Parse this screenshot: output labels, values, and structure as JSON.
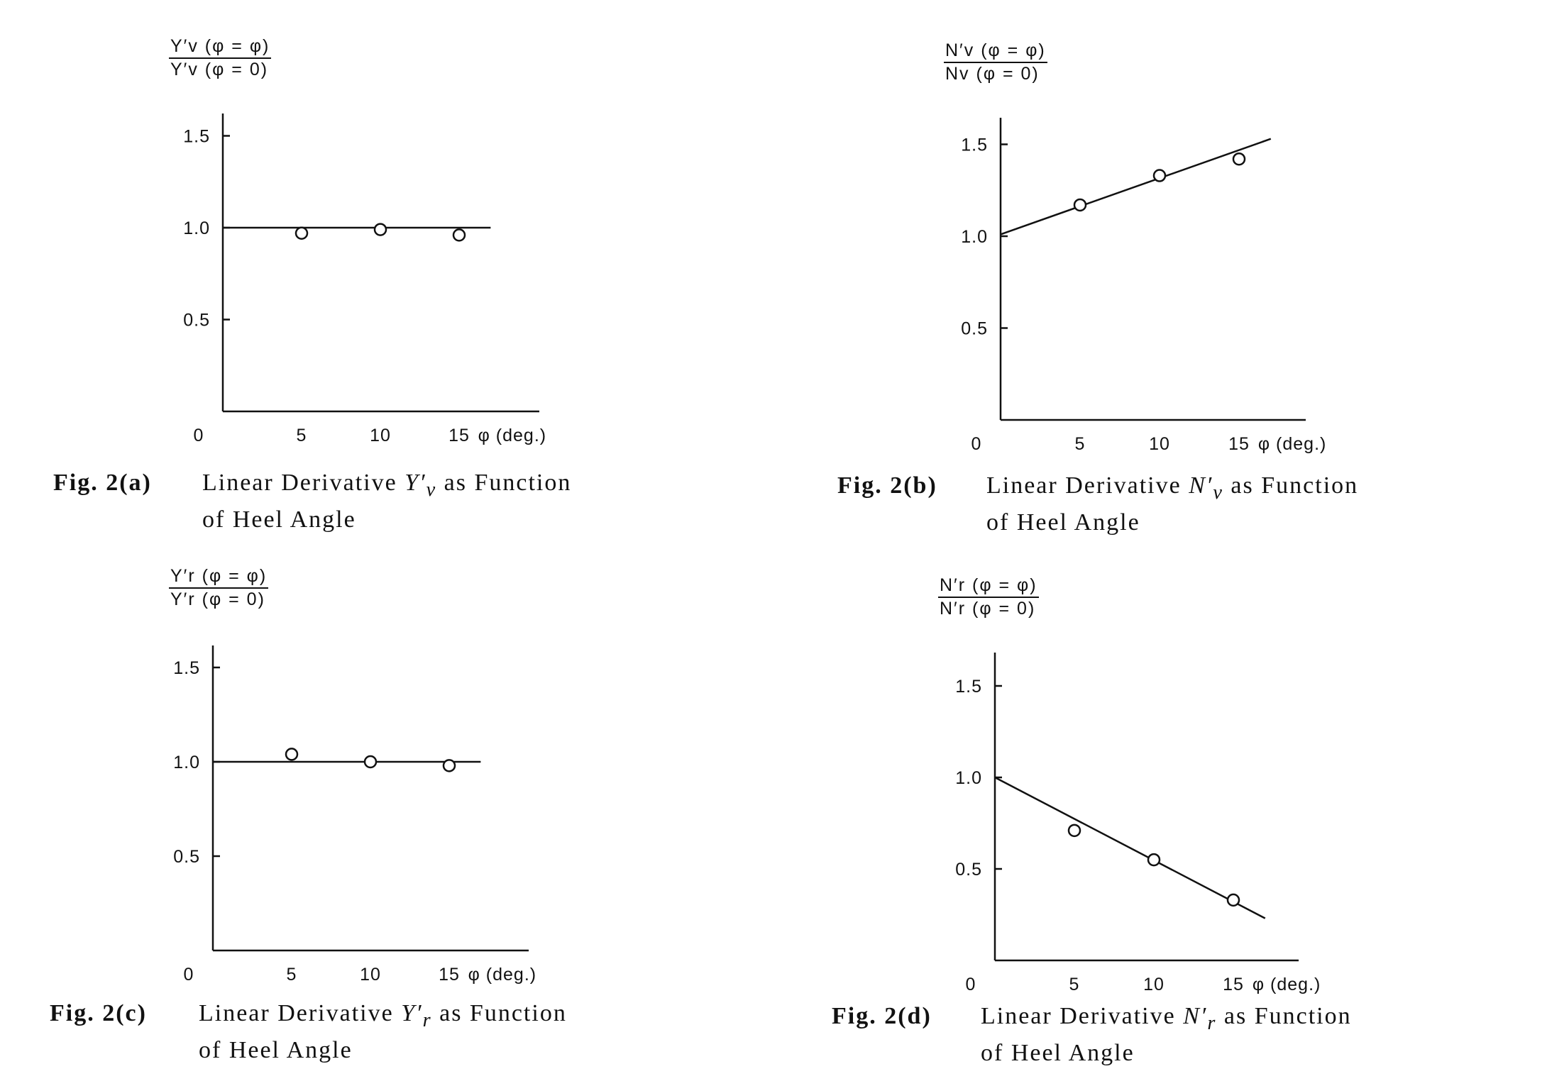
{
  "chart_data": [
    {
      "id": "a",
      "type": "scatter",
      "ylabel_num": "Y′v (φ = φ)",
      "ylabel_den": "Y′v (φ = 0)",
      "xlabel": "φ (deg.)",
      "x_ticks": [
        "0",
        "5",
        "10",
        "15"
      ],
      "y_ticks": [
        "0.5",
        "1.0",
        "1.5"
      ],
      "xlim": [
        0,
        20
      ],
      "ylim": [
        0,
        1.65
      ],
      "x": [
        5,
        10,
        15
      ],
      "y": [
        0.97,
        0.99,
        0.96
      ],
      "fit_line": {
        "x": [
          0,
          17
        ],
        "y": [
          1.0,
          1.0
        ]
      },
      "caption_fig": "Fig. 2(a)",
      "caption_text": "Linear Derivative ",
      "caption_sym": "Y′",
      "caption_sub": "v",
      "caption_tail": " as Function",
      "caption_line2": "of Heel Angle"
    },
    {
      "id": "b",
      "type": "scatter",
      "ylabel_num": "N′v (φ = φ)",
      "ylabel_den": "Nv (φ = 0)",
      "xlabel": "φ (deg.)",
      "x_ticks": [
        "0",
        "5",
        "10",
        "15"
      ],
      "y_ticks": [
        "0.5",
        "1.0",
        "1.5"
      ],
      "xlim": [
        0,
        20
      ],
      "ylim": [
        0,
        1.65
      ],
      "x": [
        5,
        10,
        15
      ],
      "y": [
        1.17,
        1.33,
        1.42
      ],
      "fit_line": {
        "x": [
          0,
          17
        ],
        "y": [
          1.01,
          1.53
        ]
      },
      "caption_fig": "Fig. 2(b)",
      "caption_text": "Linear Derivative ",
      "caption_sym": "N′",
      "caption_sub": "v",
      "caption_tail": " as Function",
      "caption_line2": "of Heel Angle"
    },
    {
      "id": "c",
      "type": "scatter",
      "ylabel_num": "Y′r (φ = φ)",
      "ylabel_den": "Y′r (φ = 0)",
      "xlabel": "φ (deg.)",
      "x_ticks": [
        "0",
        "5",
        "10",
        "15"
      ],
      "y_ticks": [
        "0.5",
        "1.0",
        "1.5"
      ],
      "xlim": [
        0,
        20
      ],
      "ylim": [
        0,
        1.65
      ],
      "x": [
        5,
        10,
        15
      ],
      "y": [
        1.04,
        1.0,
        0.98
      ],
      "fit_line": {
        "x": [
          0,
          17
        ],
        "y": [
          1.0,
          1.0
        ]
      },
      "caption_fig": "Fig. 2(c)",
      "caption_text": "Linear Derivative ",
      "caption_sym": "Y′",
      "caption_sub": "r",
      "caption_tail": " as Function",
      "caption_line2": "of Heel Angle"
    },
    {
      "id": "d",
      "type": "scatter",
      "ylabel_num": "N′r (φ = φ)",
      "ylabel_den": "N′r (φ = 0)",
      "xlabel": "φ (deg.)",
      "x_ticks": [
        "0",
        "5",
        "10",
        "15"
      ],
      "y_ticks": [
        "0.5",
        "1.0",
        "1.5"
      ],
      "xlim": [
        0,
        20
      ],
      "ylim": [
        0,
        1.65
      ],
      "x": [
        5,
        10,
        15
      ],
      "y": [
        0.71,
        0.55,
        0.33
      ],
      "fit_line": {
        "x": [
          0,
          17
        ],
        "y": [
          1.0,
          0.23
        ]
      },
      "caption_fig": "Fig. 2(d)",
      "caption_text": "Linear Derivative ",
      "caption_sym": "N′",
      "caption_sub": "r",
      "caption_tail": " as Function",
      "caption_line2": "of Heel Angle"
    }
  ]
}
